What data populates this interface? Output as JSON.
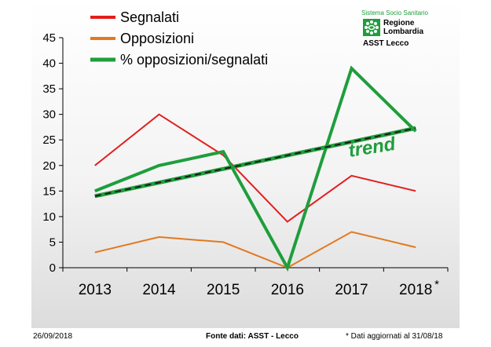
{
  "chart_data": {
    "type": "line",
    "categories": [
      "2013",
      "2014",
      "2015",
      "2016",
      "2017",
      "2018"
    ],
    "category_note": "*",
    "ylim": [
      0,
      45
    ],
    "yticks": [
      0,
      5,
      10,
      15,
      20,
      25,
      30,
      35,
      40,
      45
    ],
    "grid": false,
    "legend_position": "top-left",
    "series": [
      {
        "name": "Segnalati",
        "color": "#e31e1e",
        "values": [
          20,
          30,
          22,
          9,
          18,
          15
        ]
      },
      {
        "name": "Opposizioni",
        "color": "#e3791e",
        "values": [
          3,
          6,
          5,
          0,
          7,
          4
        ]
      },
      {
        "name": "% opposizioni/segnalati",
        "color": "#1e9e3c",
        "values": [
          15,
          20,
          22.7,
          0,
          39,
          26.7
        ]
      }
    ],
    "trend": {
      "label": "trend",
      "color": "#1e9e3c",
      "start": [
        0,
        14
      ],
      "end": [
        5,
        27.3
      ]
    }
  },
  "logo": {
    "top": "Sistema Socio Sanitario",
    "line1": "Regione",
    "line2": "Lombardia",
    "sub": "ASST Lecco"
  },
  "footer": {
    "date": "26/09/2018",
    "source": "Fonte dati: ASST - Lecco",
    "note": "* Dati aggiornati al 31/08/18"
  }
}
